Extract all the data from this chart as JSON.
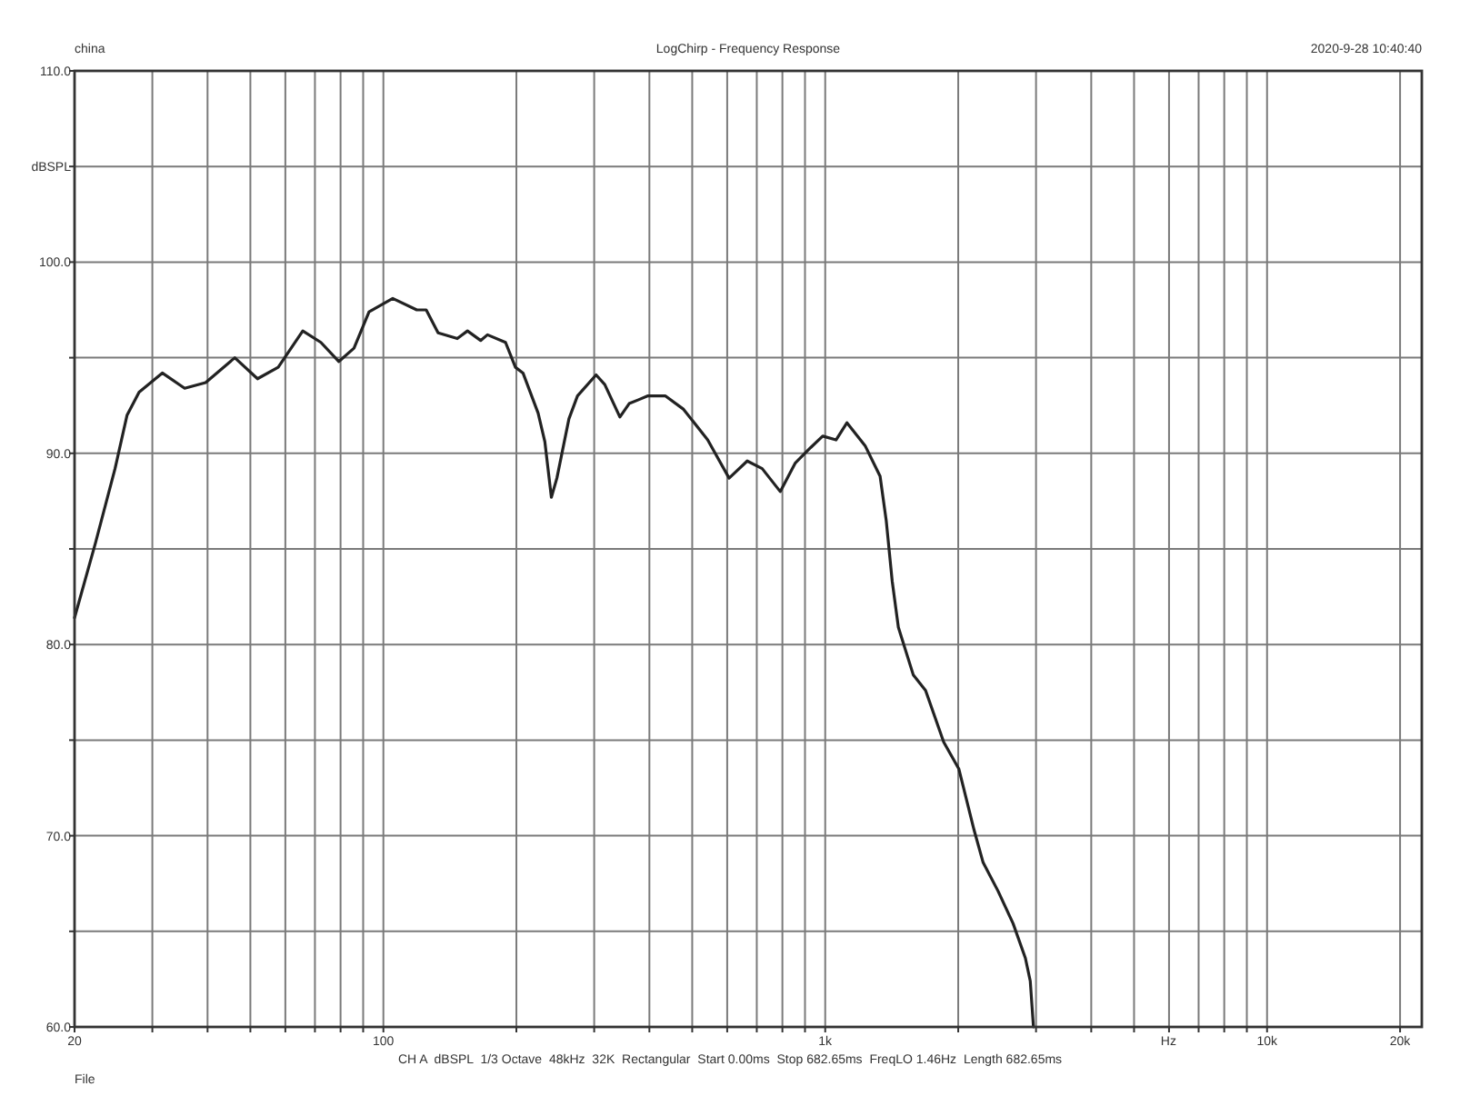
{
  "chart_data": {
    "type": "line",
    "title": "LogChirp - Frequency Response",
    "xlabel": "Hz",
    "ylabel": "dBSPL",
    "annotations": [
      "china",
      "2020-9-28 10:40:40",
      "CH A  dBSPL  1/3 Octave  48kHz  32K  Rectangular  Start 0.00ms  Stop 682.65ms  FreqLO 1.46Hz  Length 682.65ms",
      "File"
    ],
    "x": [
      20,
      22.3,
      24.7,
      26.3,
      28,
      31.6,
      35.5,
      39.6,
      46.1,
      51.9,
      57.8,
      65.7,
      72.2,
      79.3,
      85.8,
      92.8,
      105,
      119,
      125,
      133,
      147,
      155,
      166,
      172,
      189,
      199,
      207,
      224,
      232,
      240,
      247,
      263,
      275,
      303,
      317,
      343,
      360,
      378,
      396,
      435,
      478,
      542,
      606,
      666,
      720,
      791,
      856,
      927,
      987,
      1058,
      1120,
      1231,
      1331,
      1374,
      1418,
      1464,
      1583,
      1687,
      1854,
      2006,
      2172,
      2277,
      2462,
      2663,
      2838,
      2911,
      2960
    ],
    "values": [
      81.4,
      85.3,
      89.2,
      92.0,
      93.2,
      94.2,
      93.4,
      93.7,
      95.0,
      93.9,
      94.5,
      96.4,
      95.8,
      94.8,
      95.5,
      97.4,
      98.1,
      97.5,
      97.5,
      96.3,
      96.0,
      96.4,
      95.9,
      96.2,
      95.8,
      94.5,
      94.2,
      92.1,
      90.6,
      87.7,
      88.7,
      91.8,
      93.0,
      94.1,
      93.6,
      91.9,
      92.6,
      92.8,
      93.0,
      93.0,
      92.3,
      90.7,
      88.7,
      89.6,
      89.2,
      88.0,
      89.5,
      90.3,
      90.9,
      90.7,
      91.6,
      90.4,
      88.8,
      86.5,
      83.3,
      80.9,
      78.4,
      77.6,
      74.9,
      73.5,
      70.3,
      68.6,
      67.1,
      65.4,
      63.6,
      62.4,
      60.0
    ],
    "color": "#222222",
    "xlim": [
      20,
      22400
    ],
    "ylim": [
      60,
      110
    ],
    "xticks": [
      20,
      {
        "value": 30,
        "label": null
      },
      {
        "value": 40,
        "label": null
      },
      {
        "value": 50,
        "label": null
      },
      {
        "value": 60,
        "label": null
      },
      {
        "value": 70,
        "label": null
      },
      {
        "value": 80,
        "label": null
      },
      {
        "value": 90,
        "label": null
      },
      100,
      {
        "value": 200,
        "label": null
      },
      {
        "value": 300,
        "label": null
      },
      {
        "value": 400,
        "label": null
      },
      {
        "value": 500,
        "label": null
      },
      {
        "value": 600,
        "label": null
      },
      {
        "value": 700,
        "label": null
      },
      {
        "value": 800,
        "label": null
      },
      {
        "value": 900,
        "label": null
      },
      {
        "value": 1000,
        "label": "1k"
      },
      {
        "value": 2000,
        "label": null
      },
      {
        "value": 3000,
        "label": null
      },
      {
        "value": 4000,
        "label": null
      },
      {
        "value": 5000,
        "label": null
      },
      {
        "value": 6000,
        "label": null
      },
      {
        "value": 7000,
        "label": null
      },
      {
        "value": 8000,
        "label": null
      },
      {
        "value": 9000,
        "label": null
      },
      {
        "value": 10000,
        "label": "10k"
      },
      {
        "value": 20000,
        "label": "20k"
      }
    ],
    "yticks": [
      {
        "value": 60,
        "label": "60.0"
      },
      {
        "value": 65,
        "label": null
      },
      {
        "value": 70,
        "label": "70.0"
      },
      {
        "value": 75,
        "label": null
      },
      {
        "value": 80,
        "label": "80.0"
      },
      {
        "value": 85,
        "label": null
      },
      {
        "value": 90,
        "label": "90.0"
      },
      {
        "value": 95,
        "label": null
      },
      {
        "value": 100,
        "label": "100.0"
      },
      {
        "value": 105,
        "label": null
      },
      {
        "value": 110,
        "label": "110.0"
      }
    ],
    "log": "x",
    "grid": true
  }
}
